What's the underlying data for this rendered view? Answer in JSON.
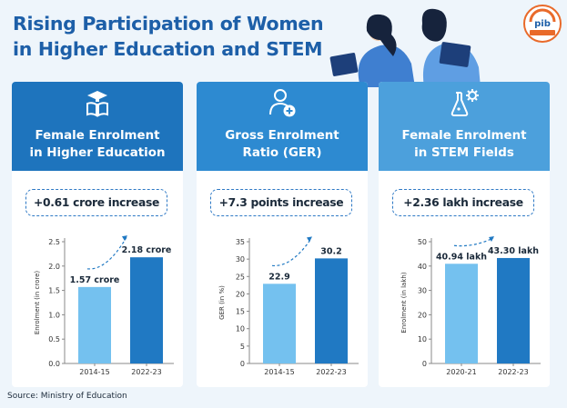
{
  "title": "Rising Participation of Women\nin Higher Education and STEM",
  "source": "Source: Ministry of Education",
  "colors": {
    "title": "#1d5fa8",
    "bar_light": "#74c1ef",
    "bar_dark": "#2079c3",
    "head1": "#1e74bd",
    "head2": "#2d8ad1",
    "head3": "#4ca0dc"
  },
  "cards": [
    {
      "title": "Female Enrolment\nin Higher Education",
      "icon": "graduation-book-icon",
      "badge": "+0.61 crore increase"
    },
    {
      "title": "Gross Enrolment\nRatio (GER)",
      "icon": "user-add-icon",
      "badge": "+7.3 points increase"
    },
    {
      "title": "Female Enrolment\nin STEM Fields",
      "icon": "flask-gear-icon",
      "badge": "+2.36 lakh increase"
    }
  ],
  "chart_data": [
    {
      "type": "bar",
      "categories": [
        "2014-15",
        "2022-23"
      ],
      "values": [
        1.57,
        2.18
      ],
      "value_labels": [
        "1.57 crore",
        "2.18 crore"
      ],
      "ylabel": "Enrolment (in crore)",
      "ylim": [
        0,
        2.5
      ],
      "yticks": [
        "0.0",
        "0.5",
        "1.0",
        "1.5",
        "2.0",
        "2.5"
      ],
      "grid": false
    },
    {
      "type": "bar",
      "categories": [
        "2014-15",
        "2022-23"
      ],
      "values": [
        22.9,
        30.2
      ],
      "value_labels": [
        "22.9",
        "30.2"
      ],
      "ylabel": "GER (in %)",
      "ylim": [
        0,
        35
      ],
      "yticks": [
        "0",
        "5",
        "10",
        "15",
        "20",
        "25",
        "30",
        "35"
      ],
      "grid": false
    },
    {
      "type": "bar",
      "categories": [
        "2020-21",
        "2022-23"
      ],
      "values": [
        40.94,
        43.3
      ],
      "value_labels": [
        "40.94 lakh",
        "43.30 lakh"
      ],
      "ylabel": "Enrolment (in lakh)",
      "ylim": [
        0,
        50
      ],
      "yticks": [
        "0",
        "10",
        "20",
        "30",
        "40",
        "50"
      ],
      "grid": false
    }
  ]
}
